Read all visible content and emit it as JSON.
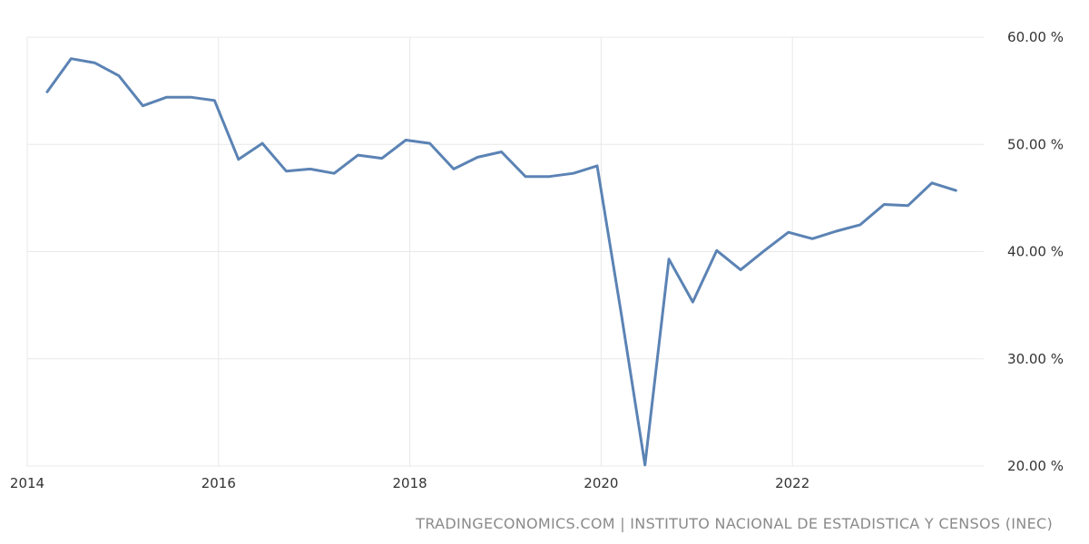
{
  "chart_data": {
    "type": "line",
    "ylim": [
      20,
      60
    ],
    "xlim": [
      2014,
      2024
    ],
    "y_ticks": [
      {
        "value": 60,
        "label": "60.00 %"
      },
      {
        "value": 50,
        "label": "50.00 %"
      },
      {
        "value": 40,
        "label": "40.00 %"
      },
      {
        "value": 30,
        "label": "30.00 %"
      },
      {
        "value": 20,
        "label": "20.00 %"
      }
    ],
    "x_ticks": [
      {
        "value": 2014,
        "label": "2014"
      },
      {
        "value": 2016,
        "label": "2016"
      },
      {
        "value": 2018,
        "label": "2018"
      },
      {
        "value": 2020,
        "label": "2020"
      },
      {
        "value": 2022,
        "label": "2022"
      }
    ],
    "grid": true,
    "series": [
      {
        "color": "#5b83b4",
        "points": [
          [
            "2014-03",
            54.9
          ],
          [
            "2014-06",
            58.0
          ],
          [
            "2014-09",
            57.6
          ],
          [
            "2014-12",
            56.4
          ],
          [
            "2015-03",
            53.6
          ],
          [
            "2015-06",
            54.4
          ],
          [
            "2015-09",
            54.4
          ],
          [
            "2015-12",
            54.1
          ],
          [
            "2016-03",
            48.6
          ],
          [
            "2016-06",
            50.1
          ],
          [
            "2016-09",
            47.5
          ],
          [
            "2016-12",
            47.7
          ],
          [
            "2017-03",
            47.3
          ],
          [
            "2017-06",
            49.0
          ],
          [
            "2017-09",
            48.7
          ],
          [
            "2017-12",
            50.4
          ],
          [
            "2018-03",
            50.1
          ],
          [
            "2018-06",
            47.7
          ],
          [
            "2018-09",
            48.8
          ],
          [
            "2018-12",
            49.3
          ],
          [
            "2019-03",
            47.0
          ],
          [
            "2019-06",
            47.0
          ],
          [
            "2019-09",
            47.3
          ],
          [
            "2019-12",
            48.0
          ],
          [
            "2020-03",
            34.3
          ],
          [
            "2020-06",
            20.1
          ],
          [
            "2020-09",
            39.3
          ],
          [
            "2020-12",
            35.3
          ],
          [
            "2021-03",
            40.1
          ],
          [
            "2021-06",
            38.3
          ],
          [
            "2021-09",
            40.1
          ],
          [
            "2021-12",
            41.8
          ],
          [
            "2022-03",
            41.2
          ],
          [
            "2022-06",
            41.9
          ],
          [
            "2022-09",
            42.5
          ],
          [
            "2022-12",
            44.4
          ],
          [
            "2023-03",
            44.3
          ],
          [
            "2023-06",
            46.4
          ],
          [
            "2023-09",
            45.7
          ]
        ]
      }
    ]
  },
  "source": "TRADINGECONOMICS.COM | INSTITUTO NACIONAL DE ESTADISTICA Y CENSOS (INEC)"
}
